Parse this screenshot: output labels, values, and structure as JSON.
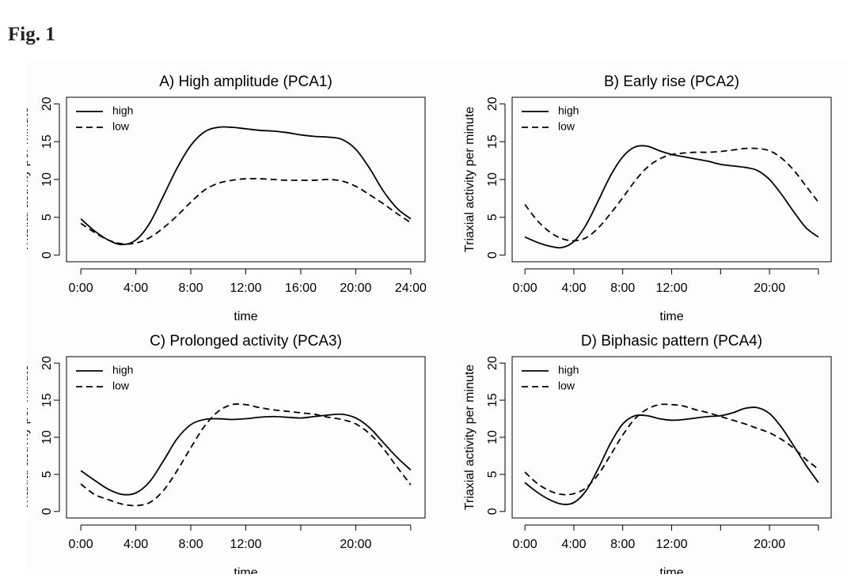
{
  "figure": {
    "label": "Fig. 1"
  },
  "chart_data": [
    {
      "type": "line",
      "title": "A) High amplitude (PCA1)",
      "xlabel": "time",
      "ylabel": "Triaxial activity per minute",
      "xlim": [
        0,
        24
      ],
      "ylim": [
        0,
        20
      ],
      "x_ticks": [
        0,
        4,
        8,
        12,
        16,
        20,
        24
      ],
      "x_tick_labels": [
        "0:00",
        "4:00",
        "8:00",
        "12:00",
        "16:00",
        "20:00",
        "24:00"
      ],
      "y_ticks": [
        0,
        5,
        10,
        15,
        20
      ],
      "y_tick_labels": [
        "0",
        "5",
        "10",
        "15",
        "20"
      ],
      "legend": {
        "position": "top-left",
        "entries": [
          {
            "label": "high",
            "style": "solid"
          },
          {
            "label": "low",
            "style": "dashed"
          }
        ]
      },
      "series": [
        {
          "name": "high",
          "style": "solid",
          "points": [
            [
              0,
              4.8
            ],
            [
              1,
              3.2
            ],
            [
              2,
              2.0
            ],
            [
              3,
              1.4
            ],
            [
              4,
              2.0
            ],
            [
              5,
              4.2
            ],
            [
              6,
              7.8
            ],
            [
              7,
              11.5
            ],
            [
              8,
              14.5
            ],
            [
              9,
              16.3
            ],
            [
              10,
              16.9
            ],
            [
              11,
              16.9
            ],
            [
              12,
              16.7
            ],
            [
              13,
              16.5
            ],
            [
              14,
              16.4
            ],
            [
              15,
              16.2
            ],
            [
              16,
              15.9
            ],
            [
              17,
              15.7
            ],
            [
              18,
              15.6
            ],
            [
              19,
              15.3
            ],
            [
              20,
              14.0
            ],
            [
              21,
              11.5
            ],
            [
              22,
              8.5
            ],
            [
              23,
              6.2
            ],
            [
              24,
              4.8
            ]
          ]
        },
        {
          "name": "low",
          "style": "dashed",
          "points": [
            [
              0,
              4.2
            ],
            [
              1,
              3.0
            ],
            [
              2,
              2.0
            ],
            [
              3,
              1.5
            ],
            [
              4,
              1.6
            ],
            [
              5,
              2.3
            ],
            [
              6,
              3.6
            ],
            [
              7,
              5.2
            ],
            [
              8,
              7.0
            ],
            [
              9,
              8.6
            ],
            [
              10,
              9.5
            ],
            [
              11,
              9.9
            ],
            [
              12,
              10.1
            ],
            [
              13,
              10.1
            ],
            [
              14,
              10.0
            ],
            [
              15,
              9.9
            ],
            [
              16,
              9.9
            ],
            [
              17,
              9.9
            ],
            [
              18,
              10.0
            ],
            [
              19,
              9.8
            ],
            [
              20,
              9.1
            ],
            [
              21,
              8.0
            ],
            [
              22,
              6.8
            ],
            [
              23,
              5.5
            ],
            [
              24,
              4.3
            ]
          ]
        }
      ]
    },
    {
      "type": "line",
      "title": "B) Early rise (PCA2)",
      "xlabel": "time",
      "ylabel": "Triaxial activity per minute",
      "xlim": [
        0,
        24
      ],
      "ylim": [
        0,
        20
      ],
      "x_ticks": [
        0,
        4,
        8,
        12,
        16,
        20,
        24
      ],
      "x_tick_labels": [
        "0:00",
        "4:00",
        "8:00",
        "12:00",
        "",
        "20:00",
        ""
      ],
      "y_ticks": [
        0,
        5,
        10,
        15,
        20
      ],
      "y_tick_labels": [
        "0",
        "5",
        "10",
        "15",
        "20"
      ],
      "legend": {
        "position": "top-left",
        "entries": [
          {
            "label": "high",
            "style": "solid"
          },
          {
            "label": "low",
            "style": "dashed"
          }
        ]
      },
      "series": [
        {
          "name": "high",
          "style": "solid",
          "points": [
            [
              0,
              2.4
            ],
            [
              1,
              1.7
            ],
            [
              2,
              1.2
            ],
            [
              3,
              1.0
            ],
            [
              4,
              1.8
            ],
            [
              5,
              4.0
            ],
            [
              6,
              7.2
            ],
            [
              7,
              10.5
            ],
            [
              8,
              13.0
            ],
            [
              9,
              14.3
            ],
            [
              10,
              14.4
            ],
            [
              11,
              13.8
            ],
            [
              12,
              13.3
            ],
            [
              13,
              13.0
            ],
            [
              14,
              12.7
            ],
            [
              15,
              12.4
            ],
            [
              16,
              12.0
            ],
            [
              17,
              11.8
            ],
            [
              18,
              11.6
            ],
            [
              19,
              11.2
            ],
            [
              20,
              10.0
            ],
            [
              21,
              8.0
            ],
            [
              22,
              5.7
            ],
            [
              23,
              3.6
            ],
            [
              24,
              2.4
            ]
          ]
        },
        {
          "name": "low",
          "style": "dashed",
          "points": [
            [
              0,
              6.7
            ],
            [
              1,
              4.6
            ],
            [
              2,
              3.1
            ],
            [
              3,
              2.2
            ],
            [
              4,
              1.9
            ],
            [
              5,
              2.3
            ],
            [
              6,
              3.6
            ],
            [
              7,
              5.5
            ],
            [
              8,
              7.6
            ],
            [
              9,
              9.8
            ],
            [
              10,
              11.6
            ],
            [
              11,
              12.7
            ],
            [
              12,
              13.3
            ],
            [
              13,
              13.5
            ],
            [
              14,
              13.6
            ],
            [
              15,
              13.6
            ],
            [
              16,
              13.7
            ],
            [
              17,
              13.9
            ],
            [
              18,
              14.1
            ],
            [
              19,
              14.1
            ],
            [
              20,
              13.8
            ],
            [
              21,
              12.8
            ],
            [
              22,
              11.2
            ],
            [
              23,
              9.1
            ],
            [
              24,
              7.0
            ]
          ]
        }
      ]
    },
    {
      "type": "line",
      "title": "C) Prolonged activity (PCA3)",
      "xlabel": "time",
      "ylabel": "Triaxial activity per minute",
      "xlim": [
        0,
        24
      ],
      "ylim": [
        0,
        20
      ],
      "x_ticks": [
        0,
        4,
        8,
        12,
        16,
        20,
        24
      ],
      "x_tick_labels": [
        "0:00",
        "4:00",
        "8:00",
        "12:00",
        "",
        "20:00",
        ""
      ],
      "y_ticks": [
        0,
        5,
        10,
        15,
        20
      ],
      "y_tick_labels": [
        "0",
        "5",
        "10",
        "15",
        "20"
      ],
      "legend": {
        "position": "top-left",
        "entries": [
          {
            "label": "high",
            "style": "solid"
          },
          {
            "label": "low",
            "style": "dashed"
          }
        ]
      },
      "series": [
        {
          "name": "high",
          "style": "solid",
          "points": [
            [
              0,
              5.5
            ],
            [
              1,
              4.2
            ],
            [
              2,
              3.0
            ],
            [
              3,
              2.3
            ],
            [
              4,
              2.5
            ],
            [
              5,
              4.0
            ],
            [
              6,
              6.8
            ],
            [
              7,
              9.8
            ],
            [
              8,
              11.7
            ],
            [
              9,
              12.4
            ],
            [
              10,
              12.5
            ],
            [
              11,
              12.4
            ],
            [
              12,
              12.5
            ],
            [
              13,
              12.7
            ],
            [
              14,
              12.8
            ],
            [
              15,
              12.7
            ],
            [
              16,
              12.6
            ],
            [
              17,
              12.8
            ],
            [
              18,
              13.0
            ],
            [
              19,
              13.1
            ],
            [
              20,
              12.6
            ],
            [
              21,
              11.3
            ],
            [
              22,
              9.3
            ],
            [
              23,
              7.3
            ],
            [
              24,
              5.6
            ]
          ]
        },
        {
          "name": "low",
          "style": "dashed",
          "points": [
            [
              0,
              3.7
            ],
            [
              1,
              2.3
            ],
            [
              2,
              1.6
            ],
            [
              3,
              1.0
            ],
            [
              4,
              0.8
            ],
            [
              5,
              1.2
            ],
            [
              6,
              2.8
            ],
            [
              7,
              5.5
            ],
            [
              8,
              8.6
            ],
            [
              9,
              11.5
            ],
            [
              10,
              13.5
            ],
            [
              11,
              14.4
            ],
            [
              12,
              14.4
            ],
            [
              13,
              14.0
            ],
            [
              14,
              13.7
            ],
            [
              15,
              13.5
            ],
            [
              16,
              13.3
            ],
            [
              17,
              13.1
            ],
            [
              18,
              12.7
            ],
            [
              19,
              12.4
            ],
            [
              20,
              11.8
            ],
            [
              21,
              10.5
            ],
            [
              22,
              8.5
            ],
            [
              23,
              6.0
            ],
            [
              24,
              3.6
            ]
          ]
        }
      ]
    },
    {
      "type": "line",
      "title": "D) Biphasic pattern (PCA4)",
      "xlabel": "time",
      "ylabel": "Triaxial activity per minute",
      "xlim": [
        0,
        24
      ],
      "ylim": [
        0,
        20
      ],
      "x_ticks": [
        0,
        4,
        8,
        12,
        16,
        20,
        24
      ],
      "x_tick_labels": [
        "0:00",
        "4:00",
        "8:00",
        "12:00",
        "",
        "20:00",
        ""
      ],
      "y_ticks": [
        0,
        5,
        10,
        15,
        20
      ],
      "y_tick_labels": [
        "0",
        "5",
        "10",
        "15",
        "20"
      ],
      "legend": {
        "position": "top-left",
        "entries": [
          {
            "label": "high",
            "style": "solid"
          },
          {
            "label": "low",
            "style": "dashed"
          }
        ]
      },
      "series": [
        {
          "name": "high",
          "style": "solid",
          "points": [
            [
              0,
              3.9
            ],
            [
              1,
              2.6
            ],
            [
              2,
              1.6
            ],
            [
              3,
              1.0
            ],
            [
              4,
              1.2
            ],
            [
              5,
              2.8
            ],
            [
              6,
              5.8
            ],
            [
              7,
              9.2
            ],
            [
              8,
              11.8
            ],
            [
              9,
              12.9
            ],
            [
              10,
              12.9
            ],
            [
              11,
              12.5
            ],
            [
              12,
              12.3
            ],
            [
              13,
              12.4
            ],
            [
              14,
              12.6
            ],
            [
              15,
              12.8
            ],
            [
              16,
              12.9
            ],
            [
              17,
              13.3
            ],
            [
              18,
              13.9
            ],
            [
              19,
              14.0
            ],
            [
              20,
              13.2
            ],
            [
              21,
              11.3
            ],
            [
              22,
              8.8
            ],
            [
              23,
              6.2
            ],
            [
              24,
              3.9
            ]
          ]
        },
        {
          "name": "low",
          "style": "dashed",
          "points": [
            [
              0,
              5.3
            ],
            [
              1,
              3.8
            ],
            [
              2,
              2.8
            ],
            [
              3,
              2.3
            ],
            [
              4,
              2.4
            ],
            [
              5,
              3.2
            ],
            [
              6,
              5.0
            ],
            [
              7,
              7.6
            ],
            [
              8,
              10.3
            ],
            [
              9,
              12.5
            ],
            [
              10,
              13.8
            ],
            [
              11,
              14.4
            ],
            [
              12,
              14.4
            ],
            [
              13,
              14.2
            ],
            [
              14,
              13.7
            ],
            [
              15,
              13.3
            ],
            [
              16,
              12.8
            ],
            [
              17,
              12.3
            ],
            [
              18,
              11.8
            ],
            [
              19,
              11.2
            ],
            [
              20,
              10.6
            ],
            [
              21,
              9.7
            ],
            [
              22,
              8.5
            ],
            [
              23,
              7.0
            ],
            [
              24,
              5.7
            ]
          ]
        }
      ]
    }
  ]
}
